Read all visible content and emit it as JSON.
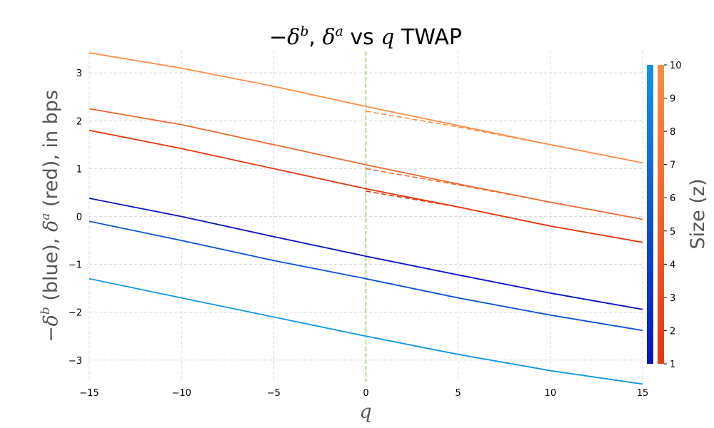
{
  "chart_data": {
    "type": "line",
    "title": "−δ^b, δ^a vs q TWAP",
    "title_parts": {
      "minus": "−",
      "delta1": "δ",
      "sup1": "b",
      "comma": ", ",
      "delta2": "δ",
      "sup2": "a",
      "vs": " vs ",
      "q": "q",
      "rest": " TWAP"
    },
    "xlabel": "q",
    "ylabel": "−δ^b (blue), δ^a (red), in bps",
    "ylabel_parts": {
      "minus": "−",
      "delta1": "δ",
      "sup1": "b",
      "mid": " (blue), ",
      "delta2": "δ",
      "sup2": "a",
      "end": " (red), in bps"
    },
    "xlim": [
      -15,
      15
    ],
    "ylim": [
      -3.45,
      3.45
    ],
    "xticks": [
      -15,
      -10,
      -5,
      0,
      5,
      10,
      15
    ],
    "xtick_labels": [
      "−15",
      "−10",
      "−5",
      "0",
      "5",
      "10",
      "15"
    ],
    "yticks": [
      -3,
      -2,
      -1,
      0,
      1,
      2,
      3
    ],
    "ytick_labels": [
      "−3",
      "−2",
      "−1",
      "0",
      "1",
      "2",
      "3"
    ],
    "grid": true,
    "vline_x": 0,
    "vline_color": "#7cc444",
    "series": [
      {
        "name": "ask z=10",
        "side": "ask",
        "style": "solid",
        "color": "#fe8c47",
        "x": [
          -15,
          -10,
          -5,
          0,
          5,
          10,
          15
        ],
        "y": [
          3.42,
          3.1,
          2.72,
          2.3,
          1.9,
          1.5,
          1.12
        ]
      },
      {
        "name": "ask z=10 dashed",
        "side": "ask",
        "style": "dashed",
        "color": "#fe8c47",
        "x": [
          0,
          5,
          10,
          15
        ],
        "y": [
          2.2,
          1.87,
          1.5,
          1.12
        ]
      },
      {
        "name": "ask z=5",
        "side": "ask",
        "style": "solid",
        "color": "#f06a30",
        "x": [
          -15,
          -10,
          -5,
          0,
          5,
          10,
          15
        ],
        "y": [
          2.25,
          1.92,
          1.5,
          1.08,
          0.68,
          0.3,
          -0.06
        ]
      },
      {
        "name": "ask z=5 dashed",
        "side": "ask",
        "style": "dashed",
        "color": "#f06a30",
        "x": [
          0,
          5,
          10,
          15
        ],
        "y": [
          1.0,
          0.66,
          0.3,
          -0.06
        ]
      },
      {
        "name": "ask z=1",
        "side": "ask",
        "style": "solid",
        "color": "#e2380e",
        "x": [
          -15,
          -10,
          -5,
          0,
          5,
          10,
          15
        ],
        "y": [
          1.8,
          1.42,
          1.0,
          0.58,
          0.2,
          -0.2,
          -0.54
        ]
      },
      {
        "name": "ask z=1 dashed",
        "side": "ask",
        "style": "dashed",
        "color": "#e2380e",
        "x": [
          0,
          5,
          10,
          15
        ],
        "y": [
          0.53,
          0.2,
          -0.2,
          -0.54
        ]
      },
      {
        "name": "bid z=1",
        "side": "bid",
        "style": "solid",
        "color": "#0a14c0",
        "x": [
          -15,
          -10,
          -5,
          0,
          5,
          10,
          15
        ],
        "y": [
          0.38,
          0.0,
          -0.42,
          -0.83,
          -1.22,
          -1.6,
          -1.94
        ]
      },
      {
        "name": "bid z=1 dashed",
        "side": "bid",
        "style": "dashed",
        "color": "#0a14c0",
        "x": [
          0,
          5,
          10,
          15
        ],
        "y": [
          -0.83,
          -1.22,
          -1.6,
          -1.94
        ]
      },
      {
        "name": "bid z=5",
        "side": "bid",
        "style": "solid",
        "color": "#0c52d6",
        "x": [
          -15,
          -10,
          -5,
          0,
          5,
          10,
          15
        ],
        "y": [
          -0.1,
          -0.5,
          -0.92,
          -1.3,
          -1.7,
          -2.06,
          -2.38
        ]
      },
      {
        "name": "bid z=5 dashed",
        "side": "bid",
        "style": "dashed",
        "color": "#0c52d6",
        "x": [
          0,
          5,
          10,
          15
        ],
        "y": [
          -1.3,
          -1.7,
          -2.06,
          -2.38
        ]
      },
      {
        "name": "bid z=10",
        "side": "bid",
        "style": "solid",
        "color": "#0f96e6",
        "x": [
          -15,
          -10,
          -5,
          0,
          5,
          10,
          15
        ],
        "y": [
          -1.3,
          -1.7,
          -2.1,
          -2.5,
          -2.88,
          -3.22,
          -3.5
        ]
      },
      {
        "name": "bid z=10 dashed",
        "side": "bid",
        "style": "dashed",
        "color": "#0f96e6",
        "x": [
          0,
          5,
          10,
          15
        ],
        "y": [
          -2.5,
          -2.88,
          -3.22,
          -3.5
        ]
      }
    ],
    "colorbar": {
      "label": "Size (z)",
      "range": [
        1,
        10
      ],
      "ticks": [
        1,
        2,
        3,
        4,
        5,
        6,
        7,
        8,
        9,
        10
      ],
      "tick_labels": [
        "1",
        "2",
        "3",
        "4",
        "5",
        "6",
        "7",
        "8",
        "9",
        "10"
      ],
      "bid_colors": [
        "#0a14c0",
        "#0f96e6"
      ],
      "ask_colors": [
        "#e2380e",
        "#fe8c47"
      ]
    }
  }
}
